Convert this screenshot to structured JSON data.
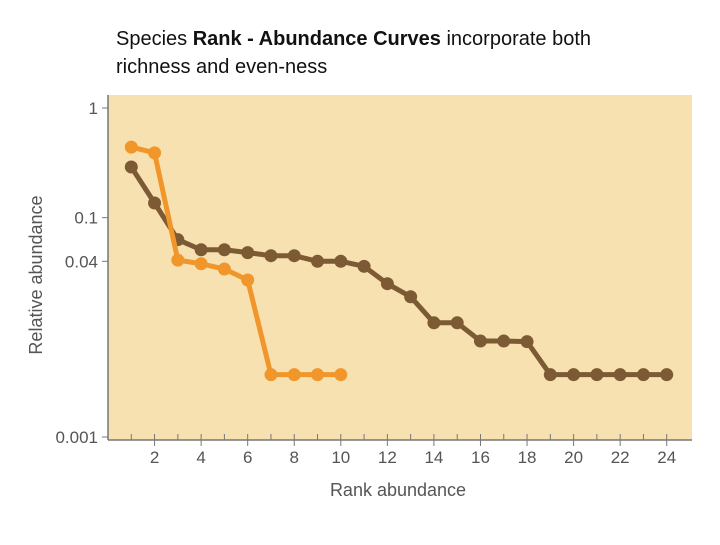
{
  "title": {
    "plain_start": "Species ",
    "bold": "Rank - Abundance Curves",
    "plain_end": " incorporate both",
    "line2": "richness and even-ness"
  },
  "chart_data": {
    "type": "line",
    "x_label": "Rank abundance",
    "y_label": "Relative abundance",
    "xlim": [
      0,
      25
    ],
    "xticks": [
      2,
      4,
      6,
      8,
      10,
      12,
      14,
      16,
      18,
      20,
      22,
      24
    ],
    "ylim": [
      0.001,
      1
    ],
    "yticks": [
      1,
      0.1,
      0.04,
      0.001
    ],
    "log_y": true,
    "series": [
      {
        "color": "#7b5a34",
        "x": [
          1,
          2,
          3,
          4,
          5,
          6,
          7,
          8,
          9,
          10,
          11,
          12,
          13,
          14,
          15,
          16,
          17,
          18,
          19,
          20,
          21,
          22,
          23,
          24
        ],
        "values": [
          0.29,
          0.136,
          0.063,
          0.051,
          0.051,
          0.048,
          0.045,
          0.045,
          0.04,
          0.04,
          0.036,
          0.025,
          0.019,
          0.011,
          0.011,
          0.0075,
          0.0075,
          0.0074,
          0.0037,
          0.0037,
          0.0037,
          0.0037,
          0.0037,
          0.0037
        ]
      },
      {
        "color": "#f0962a",
        "x": [
          1,
          2,
          3,
          4,
          5,
          6,
          7,
          8,
          9,
          10
        ],
        "values": [
          0.44,
          0.39,
          0.041,
          0.038,
          0.034,
          0.027,
          0.0037,
          0.0037,
          0.0037,
          0.0037
        ]
      }
    ]
  }
}
